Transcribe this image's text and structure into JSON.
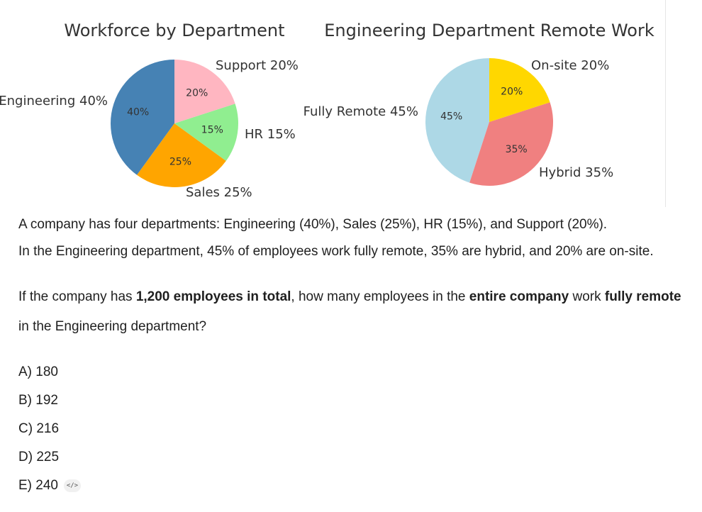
{
  "chart_data": [
    {
      "type": "pie",
      "title": "Workforce by Department",
      "categories": [
        "Engineering",
        "Sales",
        "HR",
        "Support"
      ],
      "values": [
        40,
        25,
        15,
        20
      ],
      "colors": [
        "#4682B4",
        "#FFA500",
        "#90EE90",
        "#FFB6C1"
      ],
      "labels": [
        "Engineering 40%",
        "Sales 25%",
        "HR 15%",
        "Support 20%"
      ],
      "pct_labels": [
        "40%",
        "25%",
        "15%",
        "20%"
      ]
    },
    {
      "type": "pie",
      "title": "Engineering Department Remote Work",
      "categories": [
        "Fully Remote",
        "Hybrid",
        "On-site"
      ],
      "values": [
        45,
        35,
        20
      ],
      "colors": [
        "#ADD8E6",
        "#F08080",
        "#FFD700"
      ],
      "labels": [
        "Fully Remote 45%",
        "Hybrid 35%",
        "On-site 20%"
      ],
      "pct_labels": [
        "45%",
        "35%",
        "20%"
      ]
    }
  ],
  "problem": {
    "line1": "A company has four departments: Engineering (40%), Sales (25%), HR (15%), and Support (20%).",
    "line2": "In the Engineering department, 45% of employees work fully remote, 35% are hybrid, and 20% are on-site.",
    "q_part1": "If the company has ",
    "q_bold1": "1,200 employees in total",
    "q_part2": ", how many employees in the ",
    "q_bold2": "entire company",
    "q_part3": " work ",
    "q_bold3": "fully remote",
    "q_line2": "in the Engineering department?"
  },
  "options": [
    "A) 180",
    "B) 192",
    "C) 216",
    "D) 225",
    "E) 240"
  ],
  "code_badge": "</>"
}
